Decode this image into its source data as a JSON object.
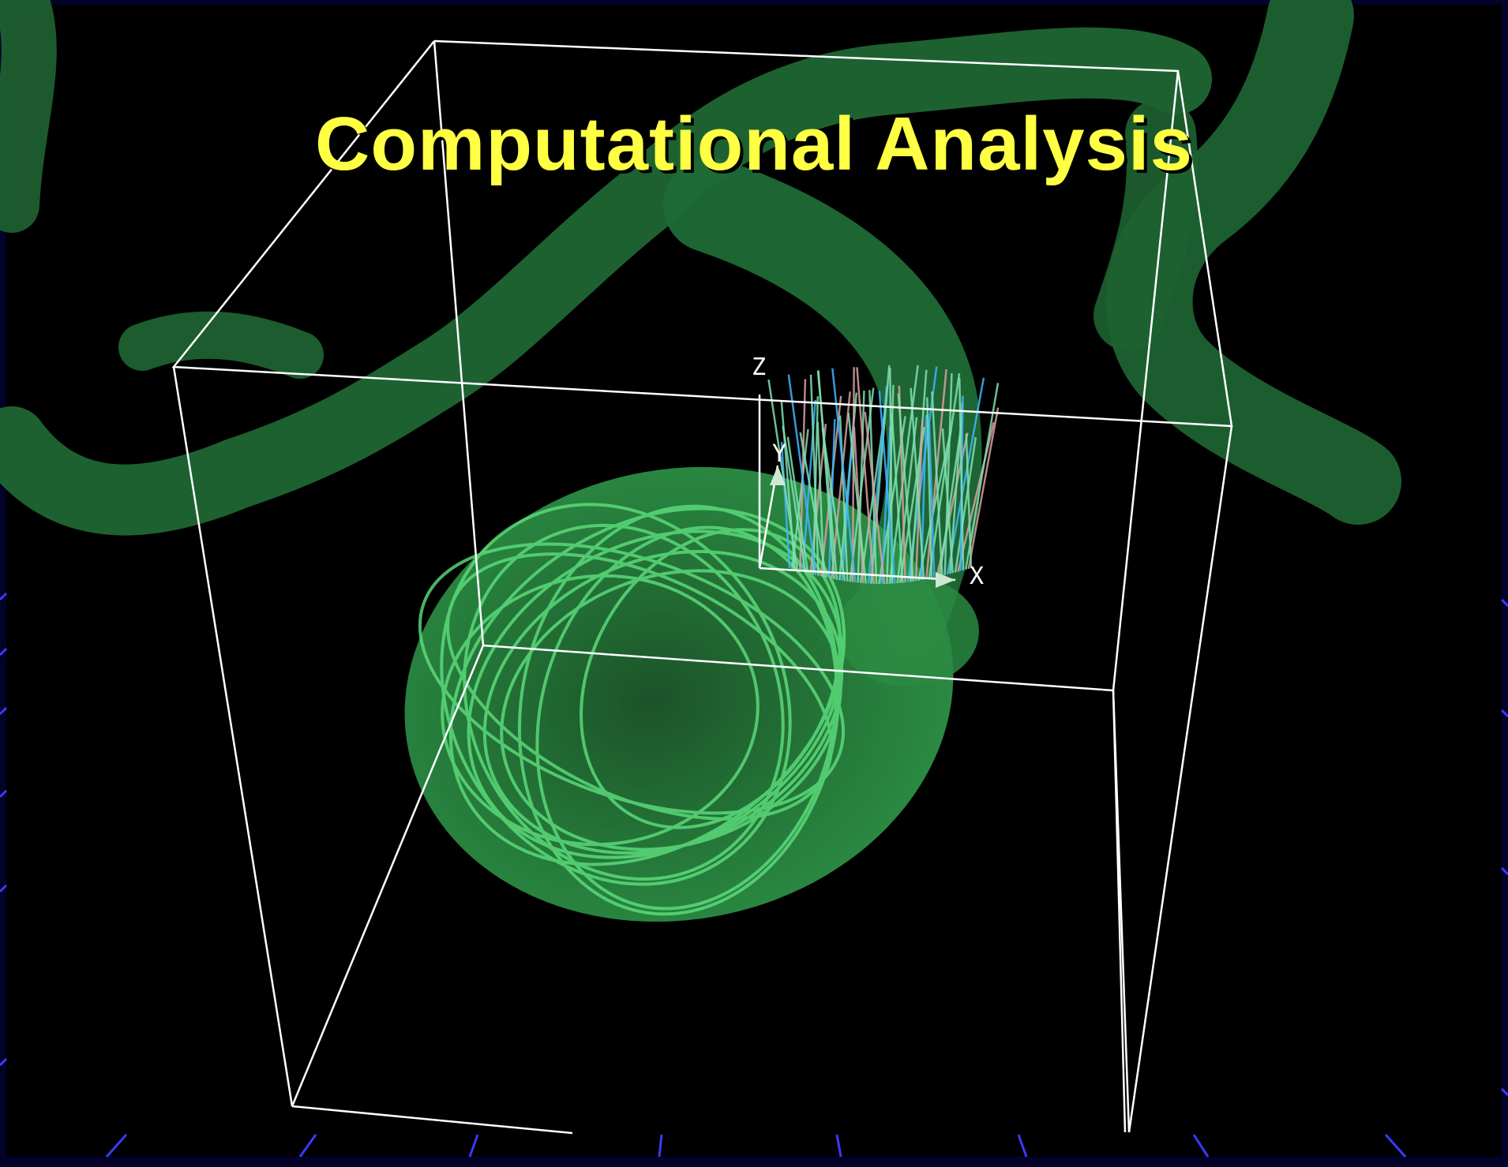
{
  "title": "Computational Analysis",
  "axes": {
    "x": "X",
    "y": "Y",
    "z": "Z"
  },
  "colors": {
    "frame": "#02022a",
    "viewport": "#000000",
    "vessel": "#1f6b35",
    "aneurysm": "#2f9a4a",
    "streamline": "#58e07a",
    "title": "#ffff44",
    "box": "#ffffff",
    "vectors_blue": "#3fb6ff",
    "vectors_pink": "#d8a0a0",
    "ticks": "#3a3aff"
  }
}
